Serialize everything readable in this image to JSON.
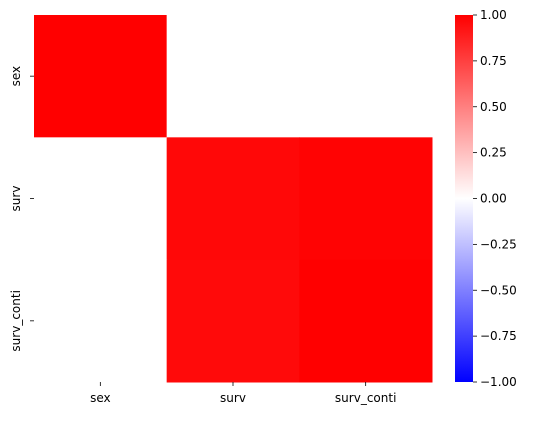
{
  "chart_data": {
    "type": "heatmap",
    "rows": [
      "sex",
      "surv",
      "surv_conti"
    ],
    "columns": [
      "sex",
      "surv",
      "surv_conti"
    ],
    "values": [
      [
        1.0,
        0.0,
        0.0
      ],
      [
        0.0,
        0.97,
        0.99
      ],
      [
        0.0,
        0.96,
        1.0
      ]
    ],
    "colorbar": {
      "ticks": [
        1.0,
        0.75,
        0.5,
        0.25,
        0.0,
        -0.25,
        -0.5,
        -0.75,
        -1.0
      ],
      "tick_labels": [
        "1.00",
        "0.75",
        "0.50",
        "0.25",
        "0.00",
        "−0.25",
        "−0.50",
        "−0.75",
        "−1.00"
      ],
      "vmin": -1.0,
      "vmax": 1.0,
      "colormap": "bwr",
      "colors": {
        "low": "#0000ff",
        "mid": "#ffffff",
        "high": "#ff0000"
      }
    }
  }
}
